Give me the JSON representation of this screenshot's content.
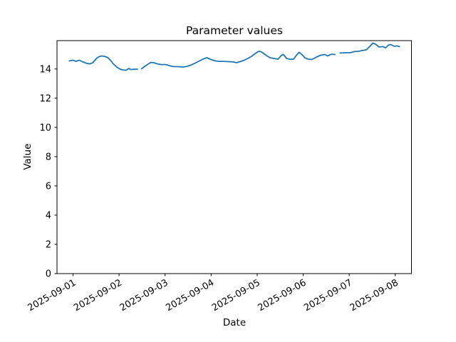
{
  "chart_data": {
    "type": "line",
    "title": "Parameter values",
    "xlabel": "Date",
    "ylabel": "Value",
    "line_color": "#1f77b4",
    "background_color": "#ffffff",
    "grid": false,
    "legend": null,
    "x_unit": "days since 2025-09-01 00:00",
    "x_tick_days": [
      0,
      1,
      2,
      3,
      4,
      5,
      6,
      7
    ],
    "x_tick_labels": [
      "2025-09-01",
      "2025-09-02",
      "2025-09-03",
      "2025-09-04",
      "2025-09-05",
      "2025-09-06",
      "2025-09-07",
      "2025-09-08"
    ],
    "y_ticks": [
      0,
      2,
      4,
      6,
      8,
      10,
      12,
      14
    ],
    "xlim_days": [
      -0.348,
      7.352
    ],
    "ylim": [
      0,
      15.94
    ],
    "series": [
      {
        "name": "parameter-value-line",
        "segments": [
          {
            "x": [
              -0.08,
              0.0,
              0.06,
              0.14,
              0.2,
              0.28,
              0.36,
              0.43,
              0.51,
              0.56,
              0.62,
              0.68,
              0.76,
              0.82,
              0.88,
              0.95,
              1.01,
              1.07,
              1.15,
              1.21,
              1.26,
              1.32,
              1.4
            ],
            "y": [
              14.55,
              14.6,
              14.52,
              14.6,
              14.5,
              14.4,
              14.35,
              14.43,
              14.72,
              14.84,
              14.89,
              14.87,
              14.77,
              14.57,
              14.33,
              14.13,
              14.01,
              13.94,
              13.91,
              14.03,
              13.96,
              13.98,
              13.98
            ]
          },
          {
            "x": [
              1.49,
              1.55,
              1.63,
              1.69,
              1.75,
              1.83,
              1.92,
              2.02,
              2.11,
              2.2,
              2.29,
              2.39,
              2.48,
              2.57,
              2.67,
              2.76,
              2.84,
              2.91,
              2.98,
              3.07,
              3.16,
              3.27,
              3.38,
              3.49,
              3.55,
              3.63,
              3.72,
              3.8,
              3.88,
              3.95,
              4.02,
              4.06,
              4.12,
              4.2,
              4.28,
              4.36,
              4.45,
              4.53,
              4.57,
              4.64,
              4.71,
              4.79,
              4.85,
              4.91,
              4.98,
              5.04,
              5.12,
              5.19,
              5.29,
              5.38,
              5.47,
              5.53,
              5.61,
              5.69
            ],
            "y": [
              14.01,
              14.16,
              14.33,
              14.45,
              14.43,
              14.35,
              14.3,
              14.3,
              14.21,
              14.16,
              14.16,
              14.13,
              14.18,
              14.28,
              14.43,
              14.57,
              14.7,
              14.77,
              14.67,
              14.57,
              14.52,
              14.52,
              14.5,
              14.48,
              14.43,
              14.5,
              14.6,
              14.72,
              14.87,
              15.04,
              15.19,
              15.21,
              15.11,
              14.92,
              14.77,
              14.72,
              14.67,
              14.94,
              14.99,
              14.72,
              14.67,
              14.67,
              14.92,
              15.14,
              14.97,
              14.75,
              14.67,
              14.65,
              14.82,
              14.94,
              14.99,
              14.89,
              15.01,
              14.99
            ]
          },
          {
            "x": [
              5.8,
              5.91,
              6.02,
              6.11,
              6.2,
              6.29,
              6.37,
              6.45,
              6.51,
              6.57,
              6.65,
              6.73,
              6.79,
              6.85,
              6.9,
              6.98,
              7.04,
              7.09
            ],
            "y": [
              15.09,
              15.11,
              15.11,
              15.19,
              15.21,
              15.26,
              15.31,
              15.55,
              15.77,
              15.7,
              15.5,
              15.53,
              15.45,
              15.63,
              15.67,
              15.55,
              15.58,
              15.53
            ]
          }
        ]
      }
    ]
  }
}
